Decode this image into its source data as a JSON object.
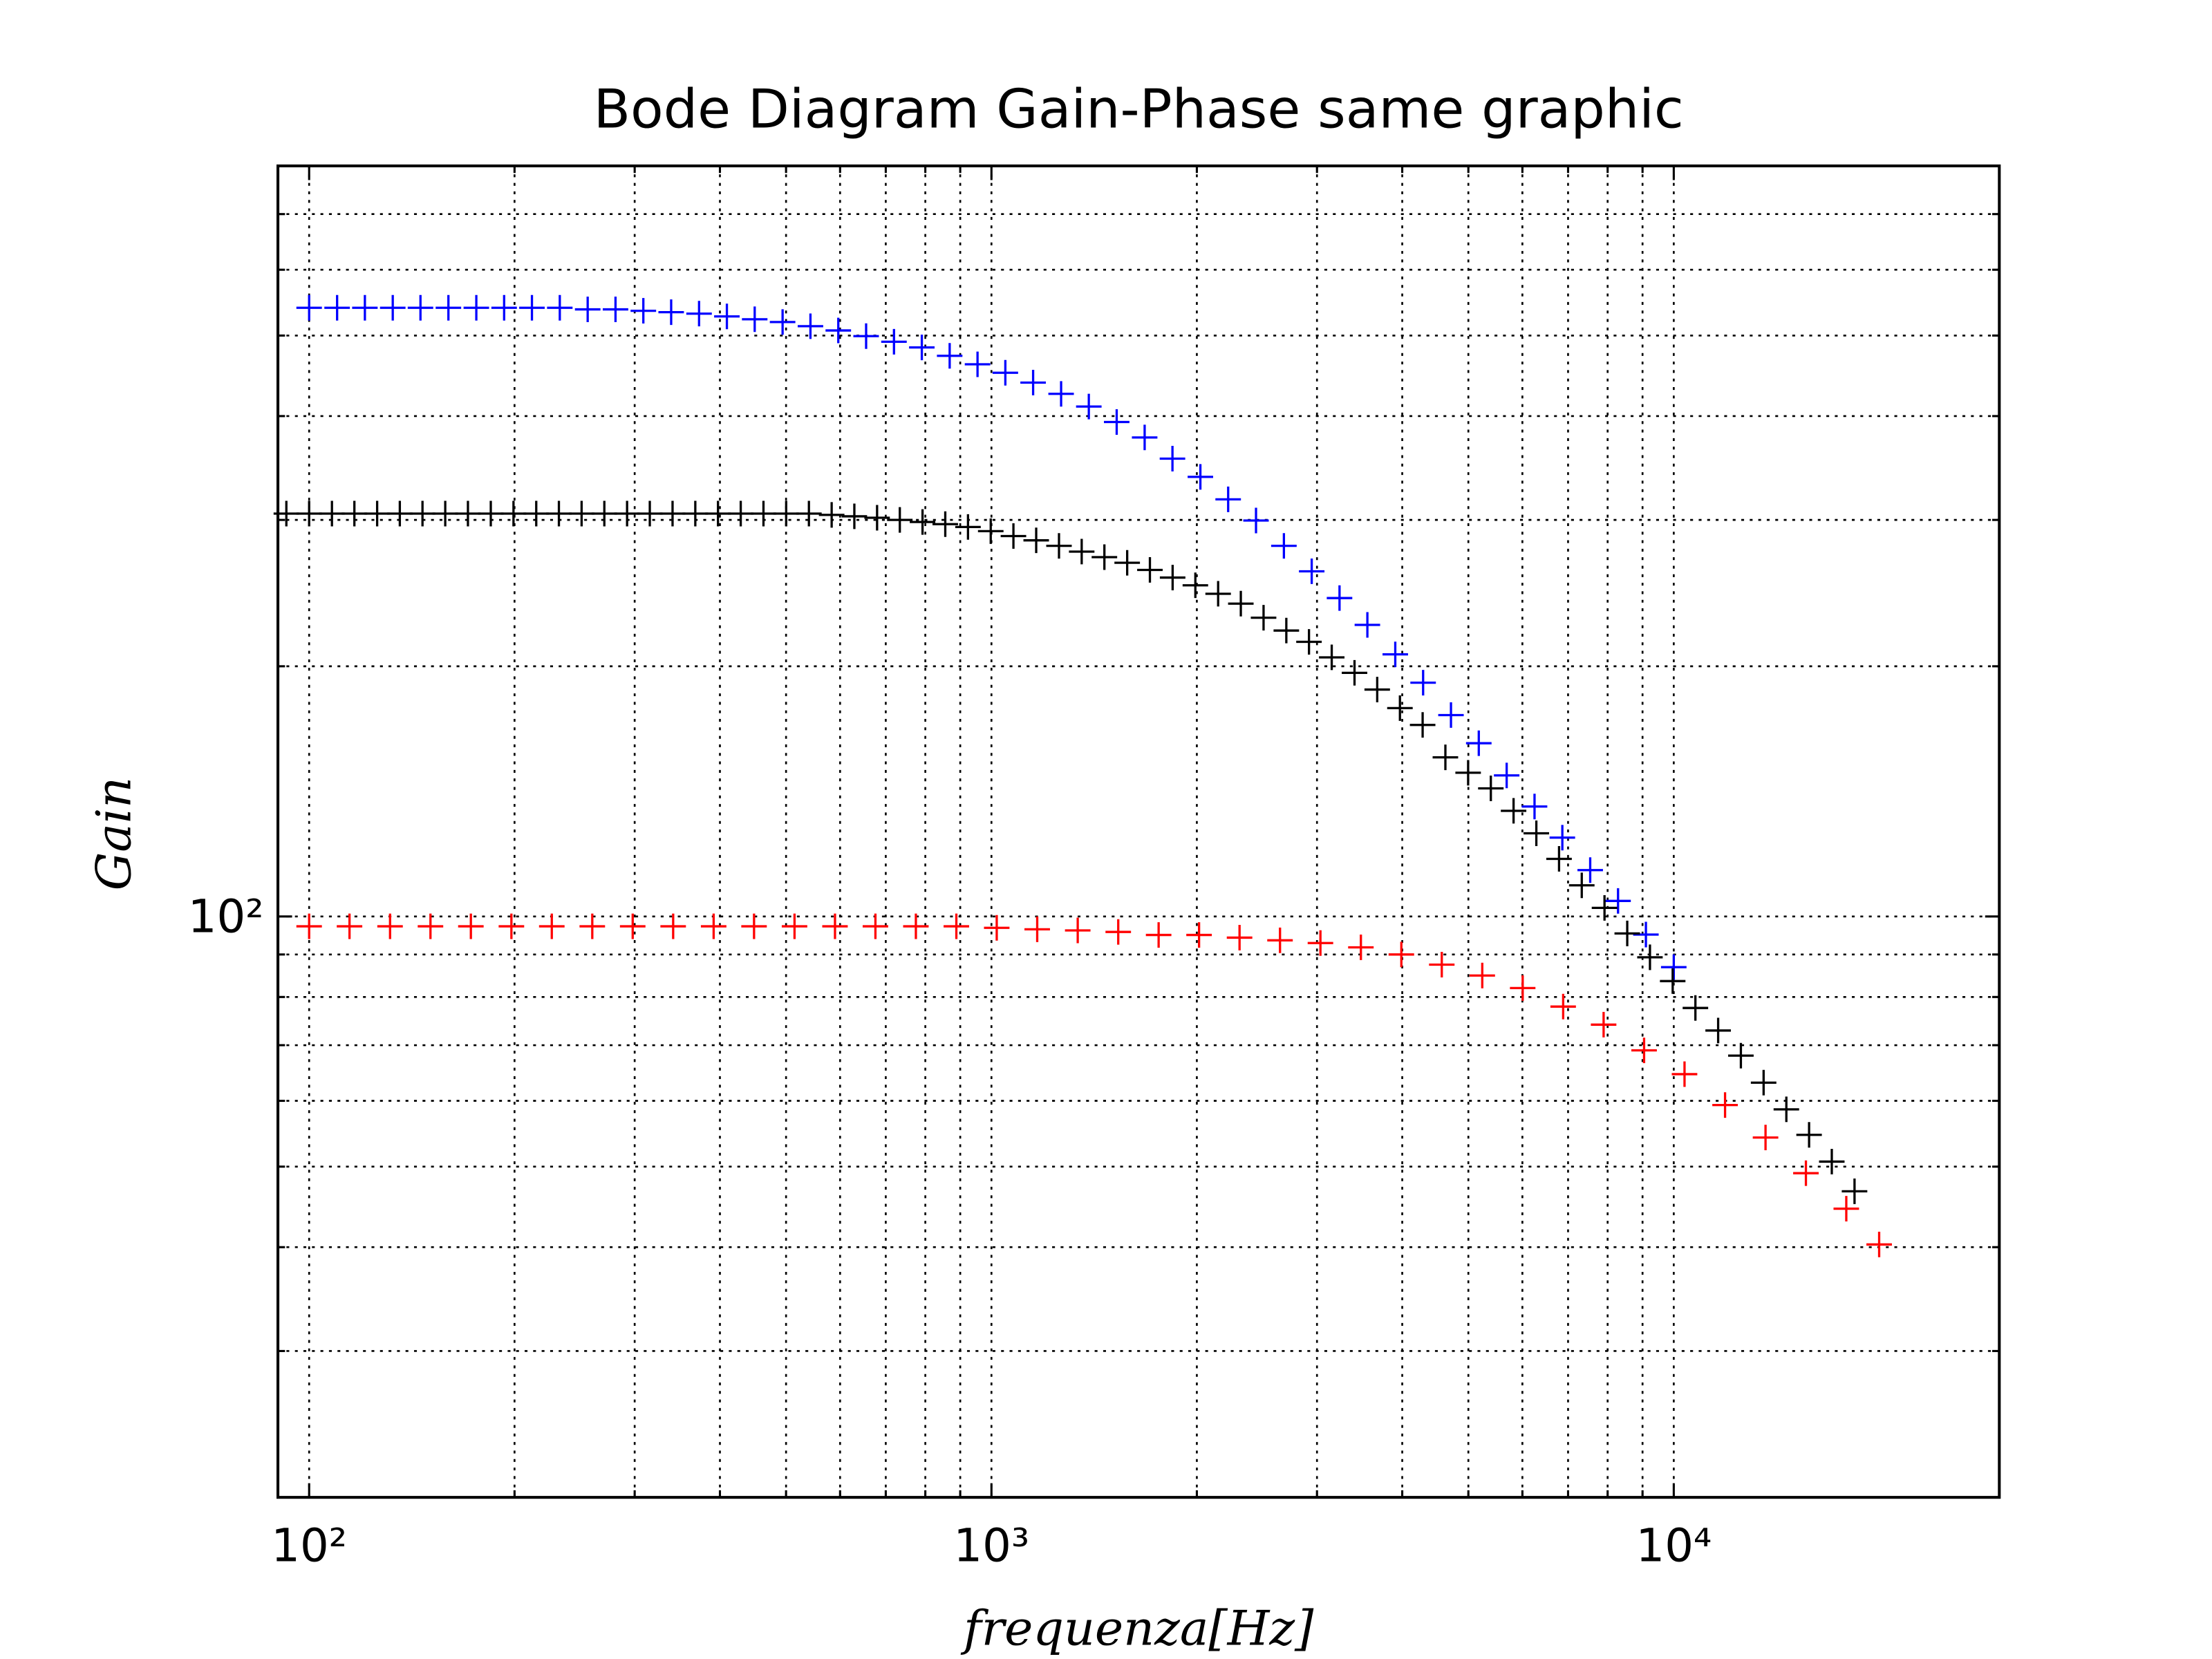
{
  "chart_data": {
    "type": "scatter",
    "title": "Bode Diagram Gain-Phase same graphic",
    "xlabel": "frequenza[Hz]",
    "ylabel": "Gain",
    "xscale": "log",
    "yscale": "log",
    "grid": true,
    "marker": "+",
    "xlim": [
      90,
      30000
    ],
    "ylim": [
      20,
      800
    ],
    "xticks": [
      {
        "value": 100,
        "label": "10²"
      },
      {
        "value": 1000,
        "label": "10³"
      },
      {
        "value": 10000,
        "label": "10⁴"
      }
    ],
    "yticks": [
      {
        "value": 100,
        "label": "10²"
      }
    ],
    "xminorticks": [
      200,
      300,
      400,
      500,
      600,
      700,
      800,
      900,
      2000,
      3000,
      4000,
      5000,
      6000,
      7000,
      8000,
      9000
    ],
    "yminorticks": [
      30,
      40,
      50,
      60,
      70,
      80,
      90,
      200,
      300,
      400,
      500,
      600,
      700
    ],
    "series": [
      {
        "color": "#0000ff",
        "x": [
          100,
          109.9,
          120.7,
          132.6,
          145.6,
          160,
          175.8,
          193.1,
          212.1,
          233,
          256,
          281.2,
          308.9,
          339.3,
          372.8,
          409.5,
          449.8,
          494.2,
          542.9,
          596.4,
          655.1,
          719.7,
          790.6,
          868.5,
          954.1,
          1048,
          1151,
          1265,
          1389,
          1526,
          1677,
          1842,
          2024,
          2223,
          2442,
          2683,
          2947,
          3237,
          3556,
          3907,
          4292,
          4715,
          5179,
          5690,
          6251,
          6866,
          7543,
          8286,
          9103,
          10000
        ],
        "values": [
          540,
          540,
          540,
          540,
          540,
          540,
          540,
          540,
          540,
          540,
          537.6,
          537.6,
          535.5,
          533.4,
          531.3,
          527.2,
          523.1,
          519.1,
          513.1,
          507.1,
          499.2,
          491.5,
          483.8,
          472.7,
          461.7,
          451,
          438.9,
          425.4,
          410.7,
          393.5,
          377,
          355.5,
          338,
          317.6,
          299.5,
          279.2,
          260.2,
          241.6,
          224.3,
          206.7,
          191.1,
          174.7,
          161.6,
          147.8,
          135.6,
          124.4,
          113.7,
          104.4,
          95.1,
          86.9
        ]
      },
      {
        "color": "#ff0000",
        "x": [
          100,
          114.6,
          131.4,
          150.6,
          172.6,
          197.9,
          226.8,
          260,
          298,
          341.6,
          391.6,
          448.8,
          514.5,
          589.8,
          676,
          774.9,
          888.3,
          1018,
          1167,
          1338,
          1534,
          1758,
          2015,
          2310,
          2648,
          3035,
          3479,
          3988,
          4571,
          5240,
          6006,
          6885,
          7892,
          9047,
          10370,
          11890,
          13630,
          15620,
          17900,
          20000
        ],
        "values": [
          97.3,
          97.3,
          97.3,
          97.3,
          97.3,
          97.3,
          97.3,
          97.3,
          97.3,
          97.3,
          97.3,
          97.3,
          97.3,
          97.3,
          97.3,
          97.3,
          97.3,
          96.9,
          96.5,
          96.2,
          95.8,
          95,
          95,
          94.3,
          93.6,
          92.9,
          91.8,
          90,
          87.5,
          84.9,
          82,
          77.9,
          74.1,
          69,
          64.6,
          59.3,
          54.2,
          49.1,
          44.5,
          40.3
        ]
      },
      {
        "color": "#000000",
        "x": [
          92.6,
          100,
          108,
          116.5,
          125.8,
          135.8,
          146.6,
          158.3,
          170.9,
          184.6,
          199.3,
          215.2,
          232.3,
          250.8,
          270.8,
          292.4,
          315.7,
          340.9,
          368.1,
          397.4,
          429.1,
          463.3,
          500.2,
          540.1,
          583.2,
          629.6,
          679.8,
          734,
          792.5,
          855.7,
          923.9,
          997.6,
          1077,
          1163,
          1256,
          1356,
          1464,
          1581,
          1707,
          1843,
          1990,
          2149,
          2320,
          2505,
          2705,
          2920,
          3153,
          3405,
          3676,
          3969,
          4285,
          4627,
          4996,
          5394,
          5824,
          6289,
          6790,
          7331,
          7916,
          8547,
          9228,
          9964,
          10758,
          11616,
          12542,
          13542,
          14622,
          15788,
          17046,
          18405
        ],
        "values": [
          305.3,
          305.3,
          305.3,
          305.3,
          305.3,
          305.3,
          305.3,
          305.3,
          305.3,
          305.3,
          305.3,
          305.3,
          305.3,
          305.3,
          305.3,
          305.3,
          305.3,
          305.3,
          305.3,
          305.3,
          305.3,
          305.3,
          305.3,
          305.3,
          304.2,
          303,
          301.8,
          300,
          298.3,
          296.5,
          294.2,
          290.8,
          286.9,
          283.5,
          279.2,
          274.8,
          270.6,
          266.4,
          261.2,
          255.7,
          250.3,
          244.5,
          237.9,
          228.8,
          220.8,
          214,
          205,
          196.4,
          187.5,
          178.1,
          170,
          155.4,
          148.9,
          142.6,
          134,
          125.9,
          117.3,
          109,
          102.4,
          95.4,
          89.3,
          83.6,
          77.6,
          72.9,
          68,
          63.1,
          58.6,
          54.6,
          50.7,
          46.7
        ]
      }
    ]
  }
}
